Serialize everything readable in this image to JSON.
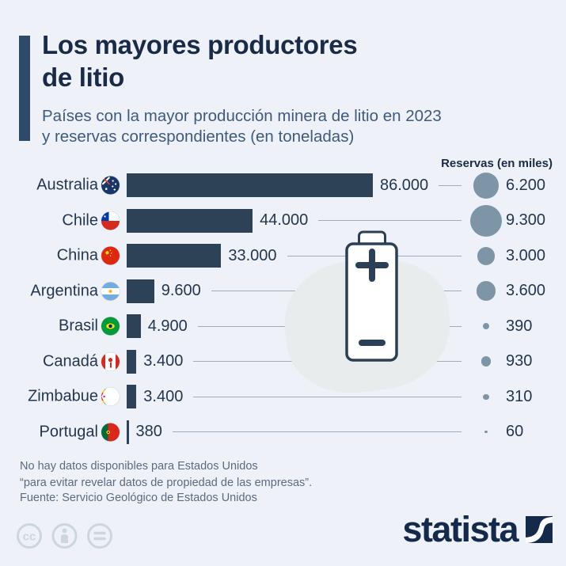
{
  "colors": {
    "background": "#eef2f8",
    "accent_bar": "#2e4a68",
    "title_text": "#1a2b47",
    "subtitle_text": "#3e5a7c",
    "bar": "#2d4257",
    "value_text": "#22364f",
    "connector_line": "#9dadbe",
    "reserve_circle": "#7e95a8",
    "blob": "#e8eced",
    "battery_stroke": "#2b4056",
    "footer_text": "#5a6b81",
    "license_icon": "#ccd6df",
    "logo": "#152a4a"
  },
  "header": {
    "title_line1": "Los mayores productores",
    "title_line2": "de litio",
    "subtitle_line1": "Países con la mayor producción minera de litio en 2023",
    "subtitle_line2": "y reservas correspondientes (en toneladas)"
  },
  "chart_data": {
    "type": "bar",
    "orientation": "horizontal",
    "title": "Los mayores productores de litio",
    "subtitle": "Países con la mayor producción minera de litio en 2023 y reservas correspondientes (en toneladas)",
    "reserves_header": "Reservas (en miles)",
    "categories": [
      "Australia",
      "Chile",
      "China",
      "Argentina",
      "Brasil",
      "Canadá",
      "Zimbabue",
      "Portugal"
    ],
    "flags": [
      "australia",
      "chile",
      "china",
      "argentina",
      "brasil",
      "canada",
      "zimbabue",
      "portugal"
    ],
    "series": [
      {
        "name": "Producción minera de litio 2023 (toneladas)",
        "values": [
          86000,
          44000,
          33000,
          9600,
          4900,
          3400,
          3400,
          380
        ],
        "labels": [
          "86.000",
          "44.000",
          "33.000",
          "9.600",
          "4.900",
          "3.400",
          "3.400",
          "380"
        ]
      },
      {
        "name": "Reservas (en miles de toneladas)",
        "values": [
          6200,
          9300,
          3000,
          3600,
          390,
          930,
          310,
          60
        ],
        "labels": [
          "6.200",
          "9.300",
          "3.000",
          "3.600",
          "390",
          "930",
          "310",
          "60"
        ]
      }
    ],
    "xlim": [
      0,
      86000
    ],
    "grid": false,
    "legend_position": "none"
  },
  "footer": {
    "note_line1": "No hay datos disponibles para Estados Unidos",
    "note_line2": "“para evitar revelar datos de propiedad de las empresas”.",
    "source": "Fuente: Servicio Geológico de Estados Unidos",
    "brand": "statista"
  },
  "icons": {
    "battery": "battery-icon",
    "license": [
      "cc-icon",
      "attribution-person-icon",
      "equals-icon"
    ],
    "logo_mark": "statista-logo-icon"
  }
}
